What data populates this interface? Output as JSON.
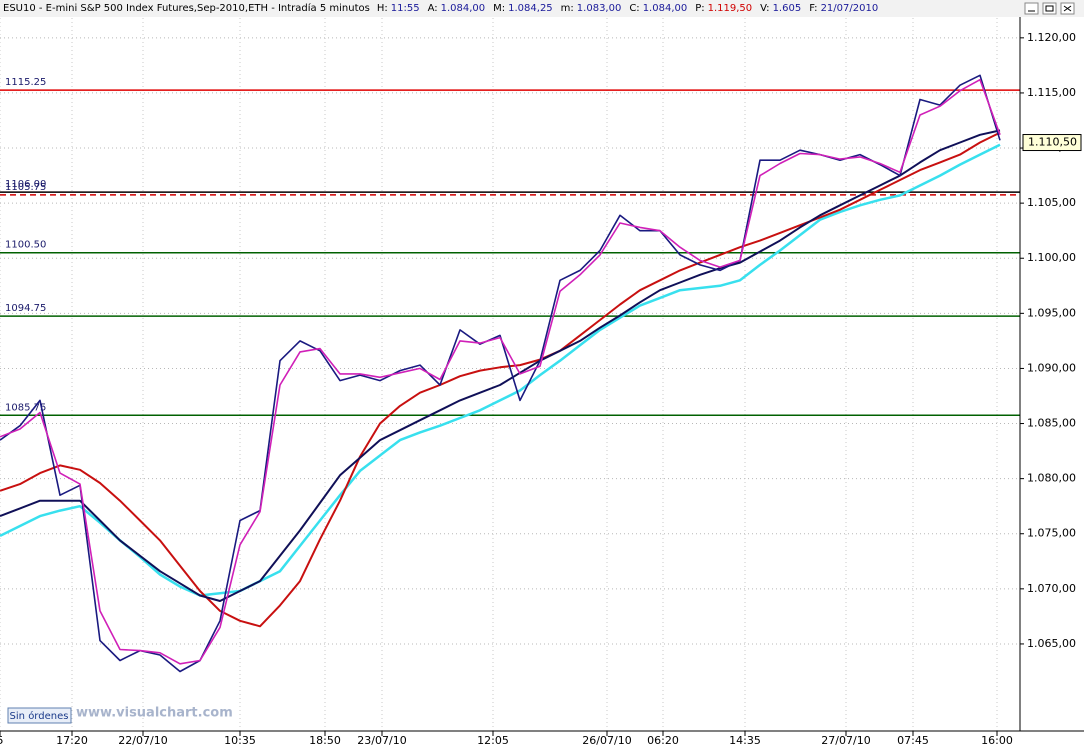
{
  "header": {
    "symbol": "ESU10 - E-mini S&P 500 Index Futures,Sep-2010,ETH - Intradía 5 minutos",
    "fields": [
      {
        "label": "H:",
        "value": "11:55",
        "color": "#1a1a9a"
      },
      {
        "label": "A:",
        "value": "1.084,00",
        "color": "#1a1a9a"
      },
      {
        "label": "M:",
        "value": "1.084,25",
        "color": "#1a1a9a"
      },
      {
        "label": "m:",
        "value": "1.083,00",
        "color": "#1a1a9a"
      },
      {
        "label": "C:",
        "value": "1.084,00",
        "color": "#1a1a9a"
      },
      {
        "label": "P:",
        "value": "1.119,50",
        "color": "#d00000"
      },
      {
        "label": "V:",
        "value": "1.605",
        "color": "#1a1a9a"
      },
      {
        "label": "F:",
        "value": "21/07/2010",
        "color": "#1a1a9a"
      }
    ]
  },
  "footer": {
    "button": "Sin órdenes",
    "watermark": "www.visualchart.com"
  },
  "chart_data": {
    "type": "line",
    "x": [
      0,
      10,
      20,
      30,
      40,
      50,
      60,
      70,
      80,
      90,
      100,
      110,
      120,
      130,
      140,
      150,
      160,
      170,
      180,
      190,
      200,
      210,
      220,
      230,
      240,
      250,
      260,
      270,
      280,
      290,
      300,
      310,
      320,
      330,
      340,
      350,
      360,
      370,
      380,
      390,
      400,
      410,
      420,
      430,
      440,
      450,
      460,
      470,
      480,
      490,
      500
    ],
    "xlim": [
      0,
      510
    ],
    "xticks": [
      {
        "value": 0,
        "label": "5"
      },
      {
        "value": 36,
        "label": "17:20"
      },
      {
        "value": 71.5,
        "label": "22/07/10"
      },
      {
        "value": 120,
        "label": "10:35"
      },
      {
        "value": 162.5,
        "label": "18:50"
      },
      {
        "value": 191,
        "label": "23/07/10"
      },
      {
        "value": 246.5,
        "label": "12:05"
      },
      {
        "value": 303.5,
        "label": "26/07/10"
      },
      {
        "value": 331.5,
        "label": "06:20"
      },
      {
        "value": 372.5,
        "label": "14:35"
      },
      {
        "value": 423,
        "label": "27/07/10"
      },
      {
        "value": 456.5,
        "label": "07:45"
      },
      {
        "value": 498.5,
        "label": "16:00"
      }
    ],
    "ylim": [
      1057.1,
      1121.8
    ],
    "yticks": [
      {
        "value": 1065,
        "label": "1.065,00"
      },
      {
        "value": 1070,
        "label": "1.070,00"
      },
      {
        "value": 1075,
        "label": "1.075,00"
      },
      {
        "value": 1080,
        "label": "1.080,00"
      },
      {
        "value": 1085,
        "label": "1.085,00"
      },
      {
        "value": 1090,
        "label": "1.090,00"
      },
      {
        "value": 1095,
        "label": "1.095,00"
      },
      {
        "value": 1100,
        "label": "1.100,00"
      },
      {
        "value": 1105,
        "label": "1.105,00"
      },
      {
        "value": 1110,
        "label": "1.110,00"
      },
      {
        "value": 1115,
        "label": "1.115,00"
      },
      {
        "value": 1120,
        "label": "1.120,00"
      }
    ],
    "grid": true,
    "last_price": {
      "value": 1110.5,
      "label": "1.110,50"
    },
    "levels": [
      {
        "value": 1115.25,
        "color": "#e00000"
      },
      {
        "value": 1106,
        "label": "1106.00",
        "color": "#000000"
      },
      {
        "value": 1105.75,
        "label": "1105.75",
        "color": "#d00000",
        "dashed": true
      },
      {
        "value": 1100.5,
        "label": "1100.50",
        "color": "#006000"
      },
      {
        "value": 1094.75,
        "color": "#006000"
      },
      {
        "value": 1085.75,
        "color": "#006000"
      }
    ],
    "series": [
      {
        "color": "#38e0ee",
        "width": 2.5,
        "values": [
          1074.8,
          1075.7,
          1076.6,
          1077.1,
          1077.5,
          1076.0,
          1074.4,
          1072.9,
          1071.3,
          1070.2,
          1069.4,
          1069.6,
          1069.8,
          1070.7,
          1071.6,
          1073.9,
          1076.2,
          1078.5,
          1080.7,
          1082.1,
          1083.5,
          1084.2,
          1084.8,
          1085.5,
          1086.2,
          1087.1,
          1088.0,
          1089.4,
          1090.7,
          1092.1,
          1093.5,
          1094.6,
          1095.7,
          1096.4,
          1097.1,
          1097.3,
          1097.5,
          1098.0,
          1099.4,
          1100.7,
          1102.1,
          1103.5,
          1104.2,
          1104.8,
          1105.3,
          1105.7,
          1106.6,
          1107.5,
          1108.5,
          1109.4,
          1110.3
        ]
      },
      {
        "color": "#c81010",
        "width": 2,
        "values": [
          1078.9,
          1079.5,
          1080.5,
          1081.2,
          1080.8,
          1079.6,
          1078.0,
          1076.2,
          1074.4,
          1072.1,
          1069.8,
          1068.0,
          1067.1,
          1066.6,
          1068.5,
          1070.7,
          1074.5,
          1078.0,
          1082.0,
          1085.0,
          1086.6,
          1087.8,
          1088.5,
          1089.3,
          1089.8,
          1090.1,
          1090.3,
          1090.8,
          1091.6,
          1093.0,
          1094.4,
          1095.8,
          1097.1,
          1098.0,
          1098.9,
          1099.6,
          1100.3,
          1101.0,
          1101.6,
          1102.3,
          1103.0,
          1103.7,
          1104.4,
          1105.3,
          1106.2,
          1107.1,
          1108.0,
          1108.7,
          1109.4,
          1110.5,
          1111.4
        ]
      },
      {
        "color": "#101058",
        "width": 2,
        "values": [
          1076.6,
          1077.3,
          1078.0,
          1078.0,
          1078.0,
          1076.2,
          1074.4,
          1073.0,
          1071.6,
          1070.5,
          1069.4,
          1068.9,
          1069.8,
          1070.7,
          1073.0,
          1075.3,
          1077.8,
          1080.3,
          1081.9,
          1083.5,
          1084.4,
          1085.3,
          1086.2,
          1087.1,
          1087.8,
          1088.5,
          1089.6,
          1090.7,
          1091.6,
          1092.5,
          1093.7,
          1094.8,
          1096.0,
          1097.1,
          1097.8,
          1098.5,
          1099.1,
          1099.6,
          1100.6,
          1101.6,
          1102.8,
          1103.9,
          1104.8,
          1105.7,
          1106.6,
          1107.5,
          1108.7,
          1109.8,
          1110.5,
          1111.2,
          1111.6
        ]
      },
      {
        "color": "#1a1a80",
        "width": 1.6,
        "values": [
          1083.5,
          1084.8,
          1087.1,
          1078.5,
          1079.4,
          1065.3,
          1063.5,
          1064.4,
          1064.0,
          1062.5,
          1063.5,
          1067.1,
          1076.2,
          1077.1,
          1090.7,
          1092.5,
          1091.6,
          1088.9,
          1089.4,
          1088.9,
          1089.8,
          1090.3,
          1088.5,
          1093.5,
          1092.2,
          1093.0,
          1087.1,
          1090.7,
          1098.0,
          1098.9,
          1100.7,
          1103.9,
          1102.5,
          1102.5,
          1100.3,
          1099.4,
          1098.9,
          1099.8,
          1108.9,
          1108.9,
          1109.8,
          1109.4,
          1108.9,
          1109.4,
          1108.5,
          1107.5,
          1114.4,
          1113.9,
          1115.7,
          1116.6,
          1110.7
        ]
      },
      {
        "color": "#d020b8",
        "width": 1.6,
        "values": [
          1083.8,
          1084.5,
          1086.0,
          1080.5,
          1079.5,
          1068.0,
          1064.5,
          1064.4,
          1064.2,
          1063.2,
          1063.5,
          1066.5,
          1074.0,
          1077.0,
          1088.5,
          1091.5,
          1091.8,
          1089.5,
          1089.5,
          1089.2,
          1089.6,
          1090.0,
          1089.0,
          1092.5,
          1092.3,
          1092.8,
          1089.5,
          1090.2,
          1097.0,
          1098.5,
          1100.3,
          1103.2,
          1102.8,
          1102.5,
          1101.0,
          1099.8,
          1099.2,
          1099.8,
          1107.5,
          1108.6,
          1109.5,
          1109.4,
          1109.0,
          1109.2,
          1108.6,
          1107.8,
          1113.0,
          1113.8,
          1115.2,
          1116.2,
          1111.2
        ]
      }
    ]
  }
}
